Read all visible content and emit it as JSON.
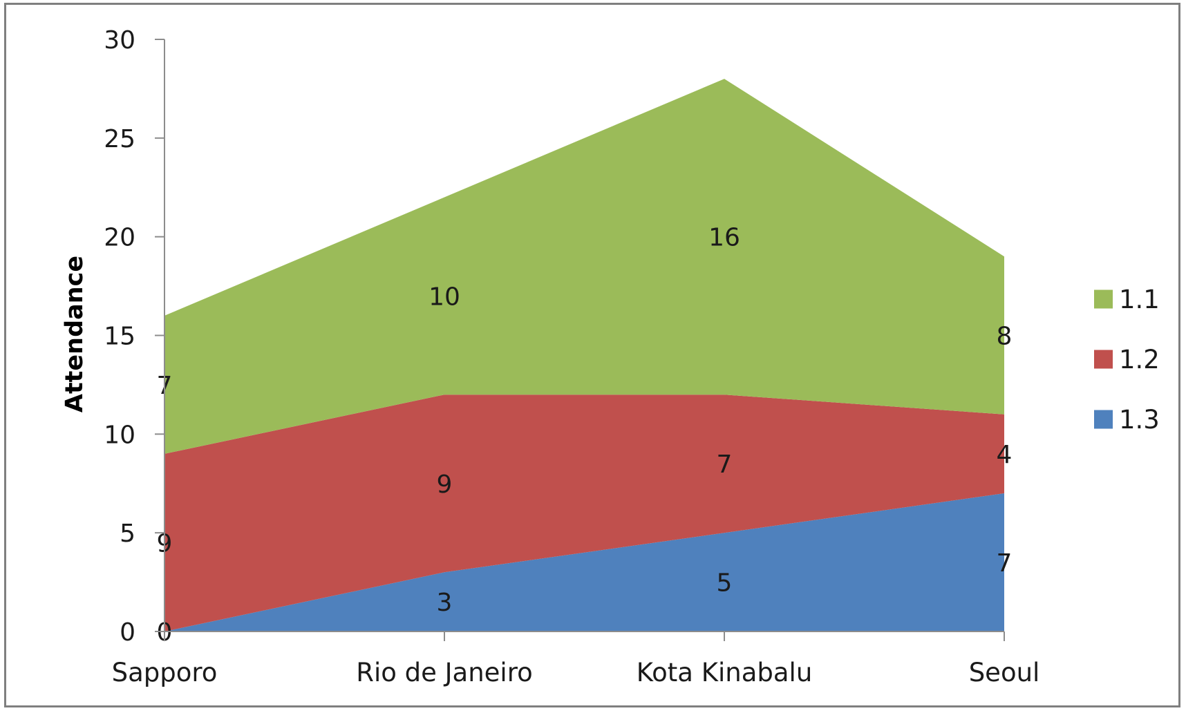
{
  "chart_data": {
    "type": "area",
    "stacked": true,
    "categories": [
      "Sapporo",
      "Rio de Janeiro",
      "Kota Kinabalu",
      "Seoul"
    ],
    "series": [
      {
        "name": "1.3",
        "values": [
          0,
          3,
          5,
          7
        ],
        "color": "#4f81bd"
      },
      {
        "name": "1.2",
        "values": [
          9,
          9,
          7,
          4
        ],
        "color": "#c0504d"
      },
      {
        "name": "1.1",
        "values": [
          7,
          10,
          16,
          8
        ],
        "color": "#9bbb59"
      }
    ],
    "ylabel": "Attendance",
    "ylim": [
      0,
      30
    ],
    "yticks": [
      0,
      5,
      10,
      15,
      20,
      25,
      30
    ],
    "legend": "right",
    "legend_order": [
      "1.1",
      "1.2",
      "1.3"
    ],
    "grid": false,
    "data_labels": true
  }
}
